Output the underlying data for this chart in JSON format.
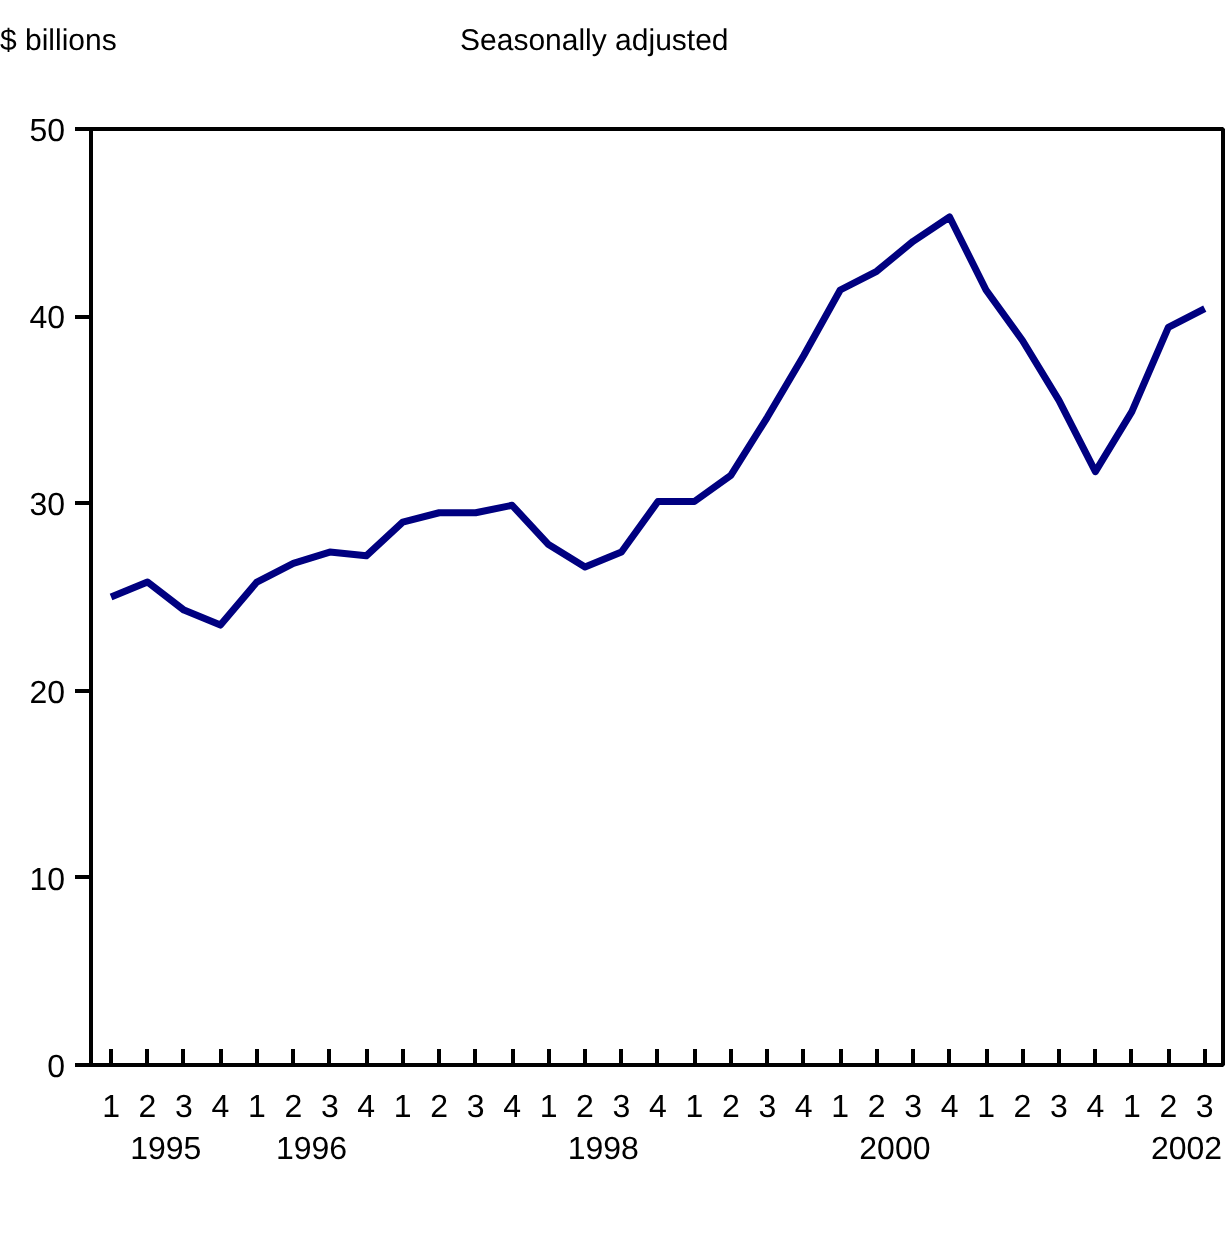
{
  "chart_data": {
    "type": "line",
    "subtitle": "Seasonally adjusted",
    "ylabel": "$ billions",
    "categories": [
      "1",
      "2",
      "3",
      "4",
      "1",
      "2",
      "3",
      "4",
      "1",
      "2",
      "3",
      "4",
      "1",
      "2",
      "3",
      "4",
      "1",
      "2",
      "3",
      "4",
      "1",
      "2",
      "3",
      "4",
      "1",
      "2",
      "3",
      "4",
      "1",
      "2",
      "3"
    ],
    "series": [
      {
        "color": "#000080",
        "values": [
          25.0,
          25.8,
          24.3,
          23.5,
          25.8,
          26.8,
          27.4,
          27.2,
          29.0,
          29.5,
          29.5,
          29.9,
          27.8,
          26.6,
          27.4,
          30.1,
          30.1,
          31.5,
          34.6,
          37.9,
          41.4,
          42.4,
          44.0,
          45.3,
          41.4,
          38.7,
          35.5,
          31.7,
          34.9,
          39.4,
          40.4
        ]
      }
    ],
    "annotations": [
      "1995",
      "1996",
      "1998",
      "2000",
      "2002"
    ],
    "ylim": [
      0,
      50
    ],
    "yticks": [
      0,
      10,
      20,
      30,
      40,
      50
    ],
    "grid": false,
    "marker": "none",
    "line_style": "solid"
  }
}
